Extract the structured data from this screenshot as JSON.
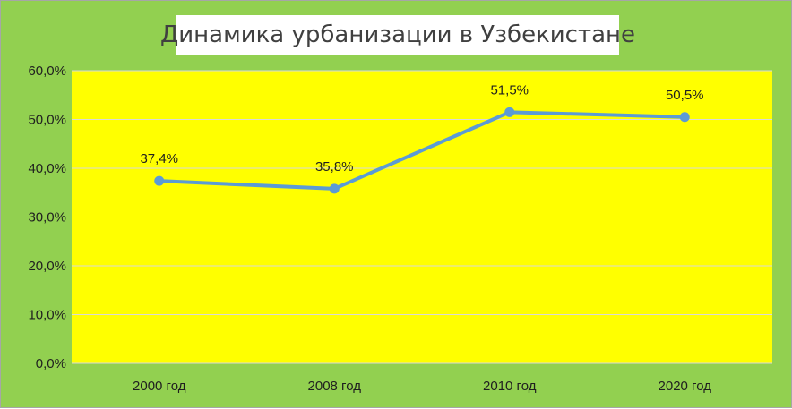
{
  "chart_data": {
    "type": "line",
    "title": "Динамика урбанизации в Узбекистане",
    "categories": [
      "2000 год",
      "2008 год",
      "2010 год",
      "2020 год"
    ],
    "series": [
      {
        "values": [
          37.4,
          35.8,
          51.5,
          50.5
        ],
        "data_labels": [
          "37,4%",
          "35,8%",
          "51,5%",
          "50,5%"
        ]
      }
    ],
    "ylim": [
      0,
      60
    ],
    "y_ticks": [
      0,
      10,
      20,
      30,
      40,
      50,
      60
    ],
    "y_tick_labels": [
      "0,0%",
      "10,0%",
      "20,0%",
      "30,0%",
      "40,0%",
      "50,0%",
      "60,0%"
    ],
    "grid": true,
    "legend": "none",
    "colors": {
      "background": "#92d050",
      "plot_area": "#ffff00",
      "line": "#5b9bd5",
      "gridline": "#d9d9d9",
      "title_box": "#ffffff"
    }
  }
}
